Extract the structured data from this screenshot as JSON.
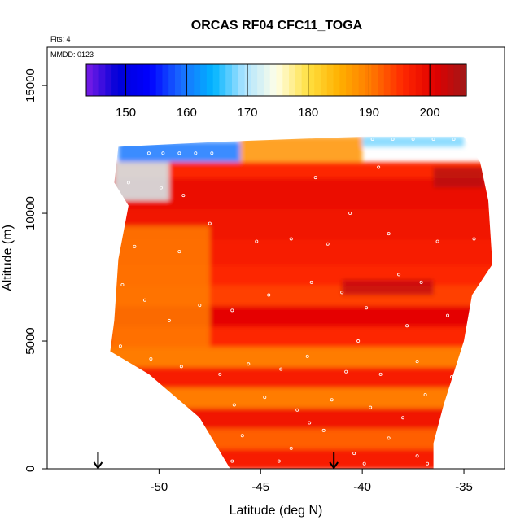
{
  "chart_data": {
    "type": "heatmap",
    "title": "ORCAS RF04 CFC11_TOGA",
    "flights_label": "Flts: 4",
    "date_label": "MMDD: 0123",
    "xlabel": "Latitude (deg N)",
    "ylabel": "Altitude (m)",
    "xlim": [
      -55.5,
      -33
    ],
    "ylim": [
      0,
      16500
    ],
    "x_ticks": [
      {
        "value": -50,
        "label": "-50"
      },
      {
        "value": -45,
        "label": "-45"
      },
      {
        "value": -40,
        "label": "-40"
      },
      {
        "value": -35,
        "label": "-35"
      }
    ],
    "y_ticks": [
      {
        "value": 0,
        "label": "0"
      },
      {
        "value": 5000,
        "label": "5000"
      },
      {
        "value": 10000,
        "label": "10000"
      },
      {
        "value": 15000,
        "label": "15000"
      }
    ],
    "colorbar": {
      "range": [
        143.5,
        206
      ],
      "ticks": [
        {
          "value": 150,
          "label": "150"
        },
        {
          "value": 160,
          "label": "160"
        },
        {
          "value": 170,
          "label": "170"
        },
        {
          "value": 180,
          "label": "180"
        },
        {
          "value": 190,
          "label": "190"
        },
        {
          "value": 200,
          "label": "200"
        }
      ],
      "colors": [
        "#7a1ce6",
        "#0000d8",
        "#0000ff",
        "#1a6cff",
        "#00b4ff",
        "#aee4ff",
        "#ffffe8",
        "#ffe040",
        "#ffb000",
        "#ff7800",
        "#ff2800",
        "#e00000",
        "#a01818"
      ]
    },
    "field_outline": [
      [
        -52.4,
        4600
      ],
      [
        -52.2,
        5800
      ],
      [
        -52.0,
        8200
      ],
      [
        -51.5,
        10300
      ],
      [
        -52.2,
        11200
      ],
      [
        -52.0,
        12600
      ],
      [
        -47.0,
        12800
      ],
      [
        -40.0,
        13000
      ],
      [
        -35.0,
        13000
      ],
      [
        -34.2,
        12000
      ],
      [
        -33.8,
        10500
      ],
      [
        -33.6,
        8000
      ],
      [
        -34.6,
        6800
      ],
      [
        -35.0,
        5000
      ],
      [
        -36.0,
        2500
      ],
      [
        -36.5,
        1000
      ],
      [
        -36.5,
        0
      ],
      [
        -46.5,
        0
      ],
      [
        -48.0,
        2000
      ],
      [
        -50.5,
        3700
      ],
      [
        -52.4,
        4600
      ]
    ],
    "layers": [
      {
        "alt": [
          0,
          800
        ],
        "value": 197
      },
      {
        "alt": [
          800,
          1600
        ],
        "value": 192
      },
      {
        "alt": [
          1600,
          2400
        ],
        "value": 198
      },
      {
        "alt": [
          2400,
          3200
        ],
        "value": 190
      },
      {
        "alt": [
          3200,
          4000
        ],
        "value": 197
      },
      {
        "alt": [
          4000,
          4800
        ],
        "value": 190
      },
      {
        "alt": [
          4800,
          5600
        ],
        "value": 196
      },
      {
        "alt": [
          5600,
          6400
        ],
        "value": 200
      },
      {
        "alt": [
          6400,
          7200
        ],
        "value": 194
      },
      {
        "alt": [
          7200,
          8000
        ],
        "value": 196
      },
      {
        "alt": [
          8000,
          9000
        ],
        "value": 197
      },
      {
        "alt": [
          9000,
          10200
        ],
        "value": 198
      },
      {
        "alt": [
          10200,
          11400
        ],
        "value": 199
      },
      {
        "alt": [
          11400,
          12000
        ],
        "value": 196
      }
    ],
    "features": [
      {
        "region": "orange west side",
        "x": [
          -52.4,
          -47.5
        ],
        "alt": [
          4000,
          9500
        ],
        "value": 190
      },
      {
        "region": "low-value upper west corner",
        "x": [
          -52.2,
          -49.5
        ],
        "alt": [
          10500,
          12000
        ],
        "value": 172
      },
      {
        "region": "top band west",
        "x": [
          -52.0,
          -46.0
        ],
        "alt": [
          12000,
          12800
        ],
        "value": 160
      },
      {
        "region": "top band middle",
        "x": [
          -46.0,
          -40.0
        ],
        "alt": [
          12000,
          13000
        ],
        "value": 188
      },
      {
        "region": "top band east",
        "x": [
          -40.0,
          -35.0
        ],
        "alt": [
          12600,
          13000
        ],
        "value": 168
      },
      {
        "region": "dark red east upper",
        "x": [
          -36.5,
          -34.0
        ],
        "alt": [
          11000,
          11800
        ],
        "value": 204
      },
      {
        "region": "dark red diagonal",
        "x": [
          -41.0,
          -36.5
        ],
        "alt": [
          6800,
          7400
        ],
        "value": 203
      }
    ],
    "sample_points": [
      [
        -50.5,
        12350
      ],
      [
        -49.8,
        12350
      ],
      [
        -49.0,
        12350
      ],
      [
        -48.2,
        12350
      ],
      [
        -47.4,
        12350
      ],
      [
        -39.5,
        12900
      ],
      [
        -38.5,
        12900
      ],
      [
        -37.5,
        12900
      ],
      [
        -36.5,
        12900
      ],
      [
        -35.5,
        12900
      ],
      [
        -51.5,
        11200
      ],
      [
        -49.9,
        11000
      ],
      [
        -48.8,
        10700
      ],
      [
        -42.3,
        11400
      ],
      [
        -39.2,
        11800
      ],
      [
        -51.8,
        9800
      ],
      [
        -51.2,
        8700
      ],
      [
        -49.0,
        8500
      ],
      [
        -47.5,
        9600
      ],
      [
        -45.2,
        8900
      ],
      [
        -43.5,
        9000
      ],
      [
        -41.7,
        8800
      ],
      [
        -40.6,
        10000
      ],
      [
        -38.7,
        9200
      ],
      [
        -36.3,
        8900
      ],
      [
        -34.5,
        9000
      ],
      [
        -51.8,
        7200
      ],
      [
        -50.7,
        6600
      ],
      [
        -49.5,
        5800
      ],
      [
        -48.0,
        6400
      ],
      [
        -46.4,
        6200
      ],
      [
        -44.6,
        6800
      ],
      [
        -42.5,
        7300
      ],
      [
        -41.0,
        6900
      ],
      [
        -39.8,
        6300
      ],
      [
        -38.2,
        7600
      ],
      [
        -37.1,
        7300
      ],
      [
        -35.8,
        6000
      ],
      [
        -34.8,
        5200
      ],
      [
        -51.9,
        4800
      ],
      [
        -50.4,
        4300
      ],
      [
        -48.9,
        4000
      ],
      [
        -47.0,
        3700
      ],
      [
        -45.6,
        4100
      ],
      [
        -44.0,
        3900
      ],
      [
        -42.7,
        4400
      ],
      [
        -40.8,
        3800
      ],
      [
        -39.1,
        3700
      ],
      [
        -37.3,
        4200
      ],
      [
        -35.6,
        3600
      ],
      [
        -46.3,
        2500
      ],
      [
        -44.8,
        2800
      ],
      [
        -43.2,
        2300
      ],
      [
        -41.5,
        2700
      ],
      [
        -39.6,
        2400
      ],
      [
        -38.0,
        2000
      ],
      [
        -36.9,
        2900
      ],
      [
        -45.9,
        1300
      ],
      [
        -43.5,
        800
      ],
      [
        -41.9,
        1500
      ],
      [
        -40.4,
        600
      ],
      [
        -38.7,
        1200
      ],
      [
        -37.3,
        500
      ],
      [
        -46.4,
        300
      ],
      [
        -44.1,
        300
      ],
      [
        -39.9,
        200
      ],
      [
        -36.8,
        200
      ],
      [
        -42.6,
        1800
      ],
      [
        -40.2,
        5000
      ],
      [
        -37.8,
        5600
      ]
    ],
    "arrows": [
      -53.0,
      -41.4
    ]
  }
}
